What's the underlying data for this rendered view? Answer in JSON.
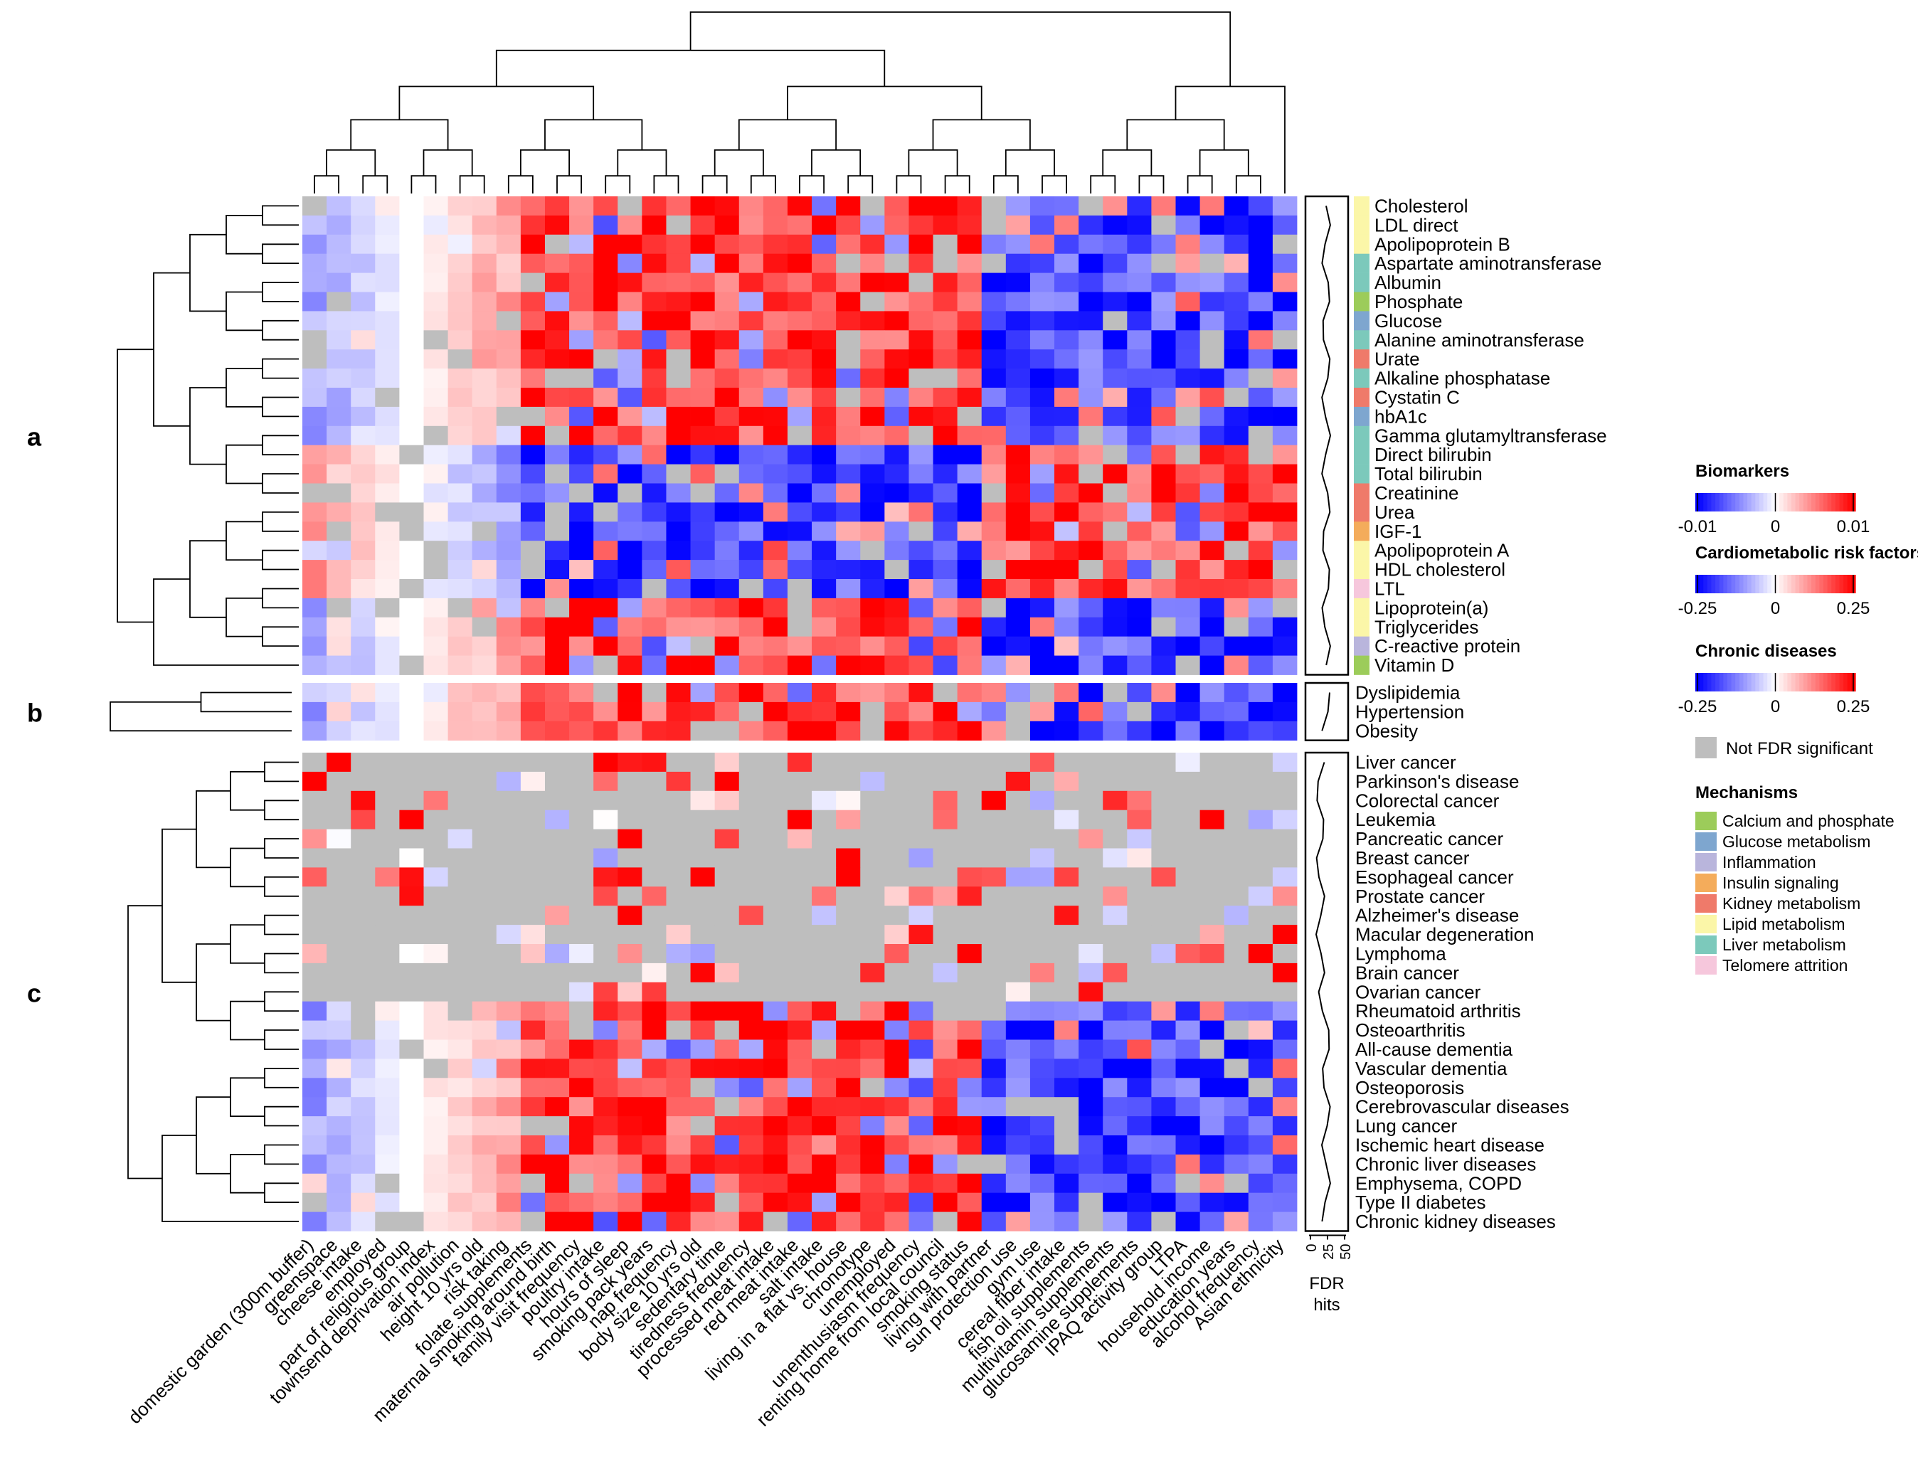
{
  "chart_data": {
    "type": "heatmap",
    "title": "",
    "panels": [
      {
        "id": "a",
        "letter": "a",
        "category": "Biomarkers",
        "rows": [
          "Cholesterol",
          "LDL direct",
          "Apolipoprotein B",
          "Aspartate aminotransferase",
          "Albumin",
          "Phosphate",
          "Glucose",
          "Alanine aminotransferase",
          "Urate",
          "Alkaline phosphatase",
          "Cystatin C",
          "hbA1c",
          "Gamma glutamyltransferase",
          "Direct bilirubin",
          "Total bilirubin",
          "Creatinine",
          "Urea",
          "IGF-1",
          "Apolipoprotein A",
          "HDL cholesterol",
          "LTL",
          "Lipoprotein(a)",
          "Triglycerides",
          "C-reactive protein",
          "Vitamin D"
        ],
        "mechanisms": [
          "Lipid metabolism",
          "Lipid metabolism",
          "Lipid metabolism",
          "Liver metabolism",
          "Liver metabolism",
          "Calcium and phosphate",
          "Glucose metabolism",
          "Liver metabolism",
          "Kidney metabolism",
          "Liver metabolism",
          "Kidney metabolism",
          "Glucose metabolism",
          "Liver metabolism",
          "Liver metabolism",
          "Liver metabolism",
          "Kidney metabolism",
          "Kidney metabolism",
          "Insulin signaling",
          "Lipid metabolism",
          "Lipid metabolism",
          "Telomere attrition",
          "Lipid metabolism",
          "Lipid metabolism",
          "Inflammation",
          "Calcium and phosphate"
        ]
      },
      {
        "id": "b",
        "letter": "b",
        "category": "Cardiometabolic risk factors",
        "rows": [
          "Dyslipidemia",
          "Hypertension",
          "Obesity"
        ]
      },
      {
        "id": "c",
        "letter": "c",
        "category": "Chronic diseases",
        "rows": [
          "Liver cancer",
          "Parkinson's disease",
          "Colorectal cancer",
          "Leukemia",
          "Pancreatic cancer",
          "Breast cancer",
          "Esophageal cancer",
          "Prostate cancer",
          "Alzheimer's disease",
          "Macular degeneration",
          "Lymphoma",
          "Brain cancer",
          "Ovarian cancer",
          "Rheumatoid arthritis",
          "Osteoarthritis",
          "All-cause dementia",
          "Vascular dementia",
          "Osteoporosis",
          "Cerebrovascular diseases",
          "Lung cancer",
          "Ischemic heart disease",
          "Chronic liver diseases",
          "Emphysema, COPD",
          "Type II diabetes",
          "Chronic kidney diseases"
        ]
      }
    ],
    "columns": [
      "domestic garden (300m buffer)",
      "greenspace",
      "cheese intake",
      "employed",
      "part of religious group",
      "townsend deprivation index",
      "air pollution",
      "height 10 yrs old",
      "risk taking",
      "folate supplements",
      "maternal smoking around birth",
      "family visit frequency",
      "poultry intake",
      "hours of sleep",
      "smoking pack years",
      "nap frequency",
      "body size 10 yrs old",
      "sedentary time",
      "tiredness frequency",
      "processed meat intake",
      "red meat intake",
      "salt intake",
      "living in a flat vs. house",
      "chronotype",
      "unemployed",
      "unenthusiasm frequency",
      "renting home from local council",
      "smoking status",
      "living with partner",
      "sun protection use",
      "gym use",
      "cereal fiber intake",
      "fish oil supplements",
      "multivitamin supplements",
      "glucosamine supplements",
      "IPAQ activity group",
      "LTPA",
      "household income",
      "education years",
      "alcohol frequency",
      "Asian ethnicity"
    ],
    "legends": [
      {
        "title": "Biomarkers",
        "min": -0.01,
        "max": 0.01,
        "ticks": [
          "-0.01",
          "0",
          "0.01"
        ]
      },
      {
        "title": "Cardiometabolic risk factors",
        "min": -0.25,
        "max": 0.25,
        "ticks": [
          "-0.25",
          "0",
          "0.25"
        ]
      },
      {
        "title": "Chronic diseases",
        "min": -0.25,
        "max": 0.25,
        "ticks": [
          "-0.25",
          "0",
          "0.25"
        ]
      }
    ],
    "not_significant_label": "Not FDR significant",
    "mechanisms_title": "Mechanisms",
    "mechanisms": [
      {
        "name": "Calcium and phosphate",
        "color": "#9ccc5a"
      },
      {
        "name": "Glucose metabolism",
        "color": "#7ea6cf"
      },
      {
        "name": "Inflammation",
        "color": "#b9b5dc"
      },
      {
        "name": "Insulin signaling",
        "color": "#f4ac5b"
      },
      {
        "name": "Kidney metabolism",
        "color": "#ef7a6a"
      },
      {
        "name": "Lipid metabolism",
        "color": "#fbf6a8"
      },
      {
        "name": "Liver metabolism",
        "color": "#7cc9bb"
      },
      {
        "name": "Telomere attrition",
        "color": "#f6c7dc"
      }
    ],
    "fdr_axis": {
      "label": "FDR hits",
      "ticks": [
        "0",
        "25",
        "50"
      ],
      "range": [
        0,
        50
      ]
    },
    "color_scale": {
      "low": "#0000ff",
      "mid": "#ffffff",
      "high": "#ff0000",
      "na": "#bebebe"
    }
  }
}
